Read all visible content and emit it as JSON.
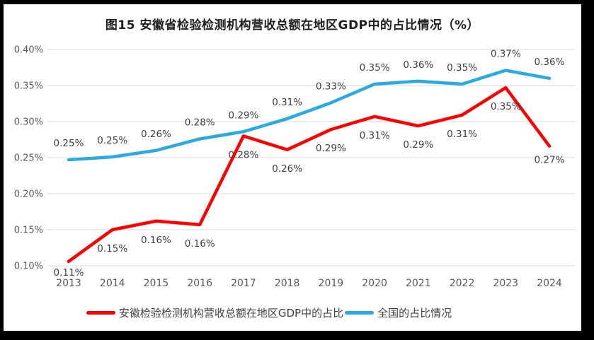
{
  "colors": {
    "grid": "#D9D9D9",
    "axis_text": "#595959",
    "label_text": "#404040",
    "title_text": "#1F1F1F",
    "frame_border": "#000000",
    "anhui_red": "#FF0000",
    "national_blue": "#29ABE2"
  },
  "chart_data": {
    "type": "line",
    "title": "图15 安徽省检验检测机构营收总额在地区GDP中的占比情况（%）",
    "categories": [
      "2013",
      "2014",
      "2015",
      "2016",
      "2017",
      "2018",
      "2019",
      "2020",
      "2021",
      "2022",
      "2023",
      "2024"
    ],
    "xlabel": "",
    "ylabel": "",
    "y_axis": {
      "min": 0.1,
      "max": 0.4,
      "step": 0.05,
      "unit": "%",
      "tick_labels": [
        "0.40%",
        "0.35%",
        "0.30%",
        "0.25%",
        "0.20%",
        "0.15%",
        "0.10%"
      ]
    },
    "grid": true,
    "legend_position": "bottom",
    "series": [
      {
        "name": "安徽检验检测机构营收总额在地区GDP中的占比",
        "color": "#FF0000",
        "values": [
          0.11,
          0.15,
          0.16,
          0.16,
          0.28,
          0.26,
          0.29,
          0.31,
          0.29,
          0.31,
          0.35,
          0.27
        ],
        "labels": [
          "0.11%",
          "0.15%",
          "0.16%",
          "0.16%",
          "0.28%",
          "0.26%",
          "0.29%",
          "0.31%",
          "0.29%",
          "0.31%",
          "0.35%",
          "0.27%"
        ],
        "plot_values": [
          0.106,
          0.15,
          0.162,
          0.157,
          0.28,
          0.261,
          0.289,
          0.307,
          0.294,
          0.309,
          0.347,
          0.266
        ],
        "label_side": "below",
        "label_dy_overrides": {
          "0": 20,
          "11": 24
        }
      },
      {
        "name": "全国的占比情况",
        "color": "#29ABE2",
        "values": [
          0.25,
          0.25,
          0.26,
          0.28,
          0.29,
          0.31,
          0.33,
          0.35,
          0.36,
          0.35,
          0.37,
          0.36
        ],
        "labels": [
          "0.25%",
          "0.25%",
          "0.26%",
          "0.28%",
          "0.29%",
          "0.31%",
          "0.33%",
          "0.35%",
          "0.36%",
          "0.35%",
          "0.37%",
          "0.36%"
        ],
        "plot_values": [
          0.247,
          0.251,
          0.26,
          0.276,
          0.286,
          0.304,
          0.326,
          0.352,
          0.356,
          0.352,
          0.371,
          0.36
        ],
        "label_side": "above",
        "label_dy_overrides": {}
      }
    ]
  }
}
